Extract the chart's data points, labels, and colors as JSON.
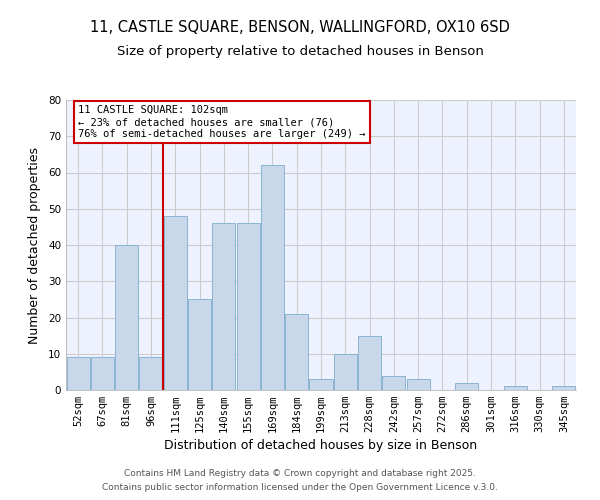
{
  "title_line1": "11, CASTLE SQUARE, BENSON, WALLINGFORD, OX10 6SD",
  "title_line2": "Size of property relative to detached houses in Benson",
  "xlabel": "Distribution of detached houses by size in Benson",
  "ylabel": "Number of detached properties",
  "categories": [
    "52sqm",
    "67sqm",
    "81sqm",
    "96sqm",
    "111sqm",
    "125sqm",
    "140sqm",
    "155sqm",
    "169sqm",
    "184sqm",
    "199sqm",
    "213sqm",
    "228sqm",
    "242sqm",
    "257sqm",
    "272sqm",
    "286sqm",
    "301sqm",
    "316sqm",
    "330sqm",
    "345sqm"
  ],
  "values": [
    9,
    9,
    40,
    9,
    48,
    25,
    46,
    46,
    62,
    21,
    3,
    10,
    15,
    4,
    3,
    0,
    2,
    0,
    1,
    0,
    1
  ],
  "bar_color": "#c8d8ea",
  "bar_edge_color": "#8ab4d0",
  "red_line_index": 3,
  "annotation_text": "11 CASTLE SQUARE: 102sqm\n← 23% of detached houses are smaller (76)\n76% of semi-detached houses are larger (249) →",
  "annotation_box_color": "white",
  "annotation_box_edge_color": "#cc0000",
  "red_line_color": "#cc0000",
  "ylim": [
    0,
    80
  ],
  "yticks": [
    0,
    10,
    20,
    30,
    40,
    50,
    60,
    70,
    80
  ],
  "grid_color": "#cccccc",
  "background_color": "#eef2ff",
  "footer_line1": "Contains HM Land Registry data © Crown copyright and database right 2025.",
  "footer_line2": "Contains public sector information licensed under the Open Government Licence v.3.0.",
  "title_fontsize": 10.5,
  "subtitle_fontsize": 9.5,
  "annotation_fontsize": 7.5,
  "axis_label_fontsize": 9,
  "tick_fontsize": 7.5,
  "footer_fontsize": 6.5
}
